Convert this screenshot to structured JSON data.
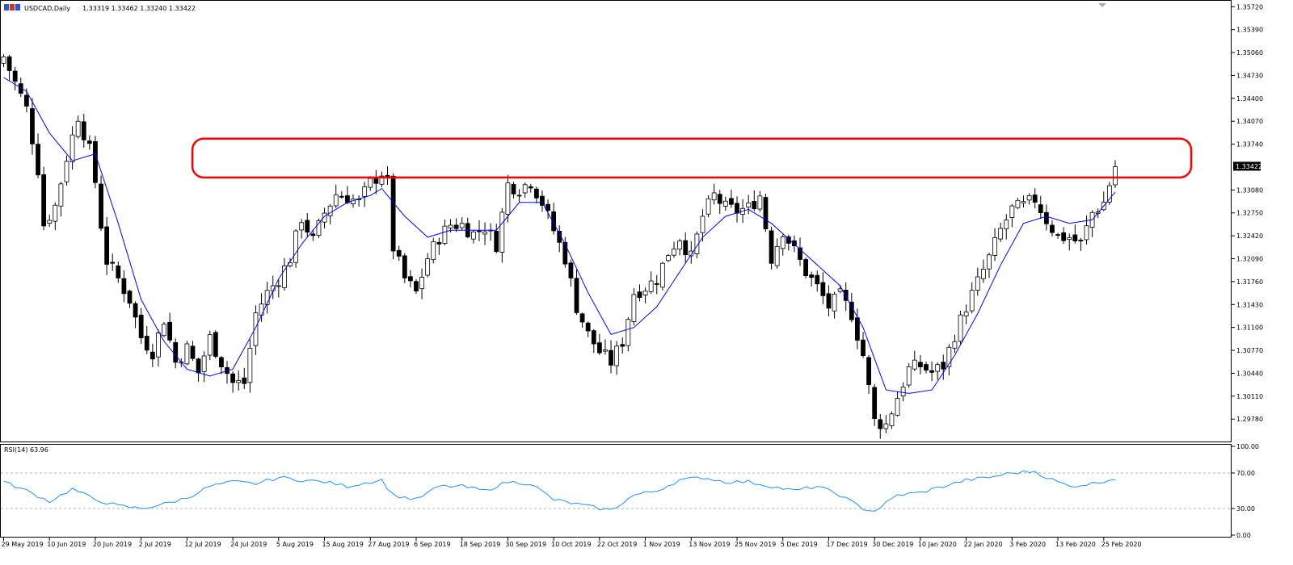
{
  "header": {
    "symbol_label": "USDCAD,Daily",
    "ohlc_label": "1.33319 1.33462 1.33240 1.33422"
  },
  "price_axis": {
    "ticks": [
      "1.35720",
      "1.35390",
      "1.35060",
      "1.34730",
      "1.34400",
      "1.34070",
      "1.33740",
      "1.33080",
      "1.32750",
      "1.32420",
      "1.32090",
      "1.31760",
      "1.31430",
      "1.31100",
      "1.30770",
      "1.30440",
      "1.30110",
      "1.29780"
    ],
    "tick_values": [
      1.3572,
      1.3539,
      1.3506,
      1.3473,
      1.344,
      1.3407,
      1.3374,
      1.3308,
      1.3275,
      1.3242,
      1.3209,
      1.3176,
      1.3143,
      1.311,
      1.3077,
      1.3044,
      1.3011,
      1.2978
    ],
    "current_price_label": "1.33422",
    "current_price": 1.33422,
    "range": [
      1.2948,
      1.3577
    ]
  },
  "rsi_panel": {
    "label": "RSI(14) 63.96",
    "ticks": [
      "100.00",
      "70.00",
      "30.00",
      "0.00"
    ],
    "tick_values": [
      100,
      70,
      30,
      0
    ],
    "levels": [
      70,
      30
    ],
    "range": [
      0,
      100
    ]
  },
  "time_axis": {
    "labels": [
      "29 May 2019",
      "10 Jun 2019",
      "20 Jun 2019",
      "2 Jul 2019",
      "12 Jul 2019",
      "24 Jul 2019",
      "5 Aug 2019",
      "15 Aug 2019",
      "27 Aug 2019",
      "6 Sep 2019",
      "18 Sep 2019",
      "30 Sep 2019",
      "10 Oct 2019",
      "22 Oct 2019",
      "1 Nov 2019",
      "13 Nov 2019",
      "25 Nov 2019",
      "5 Dec 2019",
      "17 Dec 2019",
      "30 Dec 2019",
      "10 Jan 2020",
      "22 Jan 2020",
      "3 Feb 2020",
      "13 Feb 2020",
      "25 Feb 2020"
    ],
    "label_bar_index": [
      0,
      8,
      16,
      24,
      32,
      40,
      48,
      56,
      64,
      72,
      80,
      88,
      96,
      104,
      112,
      120,
      128,
      136,
      144,
      152,
      160,
      168,
      176,
      184,
      192
    ]
  },
  "resistance_zone": {
    "top": 1.3382,
    "bottom": 1.3326,
    "color": "#ff0000"
  },
  "colors": {
    "bull_body": "#ffffff",
    "bear_body": "#000000",
    "ma_line": "#0000ff",
    "rsi_line": "#1e90ff",
    "zone": "#ff0000"
  },
  "chart_data": {
    "type": "candlestick",
    "symbol": "USDCAD",
    "timeframe": "Daily",
    "x_start": "29 May 2019",
    "x_end": "27 Feb 2020",
    "close_points": [
      [
        0,
        1.35
      ],
      [
        4,
        1.3425
      ],
      [
        6,
        1.3338
      ],
      [
        7,
        1.3258
      ],
      [
        9,
        1.3285
      ],
      [
        11,
        1.3355
      ],
      [
        13,
        1.3415
      ],
      [
        15,
        1.3365
      ],
      [
        16,
        1.332
      ],
      [
        17,
        1.3258
      ],
      [
        18,
        1.3206
      ],
      [
        20,
        1.318
      ],
      [
        22,
        1.315
      ],
      [
        24,
        1.3096
      ],
      [
        26,
        1.3075
      ],
      [
        28,
        1.3122
      ],
      [
        30,
        1.306
      ],
      [
        32,
        1.308
      ],
      [
        34,
        1.3045
      ],
      [
        36,
        1.3095
      ],
      [
        38,
        1.306
      ],
      [
        40,
        1.303
      ],
      [
        42,
        1.303
      ],
      [
        44,
        1.313
      ],
      [
        46,
        1.316
      ],
      [
        48,
        1.318
      ],
      [
        50,
        1.321
      ],
      [
        52,
        1.3268
      ],
      [
        54,
        1.3235
      ],
      [
        56,
        1.3275
      ],
      [
        58,
        1.3302
      ],
      [
        60,
        1.3298
      ],
      [
        62,
        1.329
      ],
      [
        64,
        1.3318
      ],
      [
        66,
        1.3333
      ],
      [
        67,
        1.3318
      ],
      [
        68,
        1.3225
      ],
      [
        70,
        1.318
      ],
      [
        72,
        1.316
      ],
      [
        74,
        1.321
      ],
      [
        76,
        1.324
      ],
      [
        78,
        1.3258
      ],
      [
        80,
        1.3258
      ],
      [
        82,
        1.3245
      ],
      [
        84,
        1.3255
      ],
      [
        86,
        1.323
      ],
      [
        88,
        1.3316
      ],
      [
        90,
        1.331
      ],
      [
        92,
        1.332
      ],
      [
        94,
        1.329
      ],
      [
        96,
        1.325
      ],
      [
        98,
        1.321
      ],
      [
        100,
        1.314
      ],
      [
        102,
        1.31
      ],
      [
        104,
        1.3075
      ],
      [
        106,
        1.306
      ],
      [
        108,
        1.309
      ],
      [
        110,
        1.316
      ],
      [
        112,
        1.3168
      ],
      [
        114,
        1.318
      ],
      [
        116,
        1.3218
      ],
      [
        118,
        1.324
      ],
      [
        120,
        1.321
      ],
      [
        122,
        1.327
      ],
      [
        124,
        1.33
      ],
      [
        126,
        1.3282
      ],
      [
        128,
        1.3278
      ],
      [
        130,
        1.3282
      ],
      [
        132,
        1.33
      ],
      [
        134,
        1.321
      ],
      [
        136,
        1.325
      ],
      [
        138,
        1.322
      ],
      [
        140,
        1.319
      ],
      [
        142,
        1.3168
      ],
      [
        144,
        1.314
      ],
      [
        146,
        1.3155
      ],
      [
        148,
        1.313
      ],
      [
        150,
        1.307
      ],
      [
        152,
        1.2975
      ],
      [
        154,
        1.297
      ],
      [
        156,
        1.301
      ],
      [
        158,
        1.305
      ],
      [
        160,
        1.3055
      ],
      [
        162,
        1.3045
      ],
      [
        164,
        1.3055
      ],
      [
        166,
        1.31
      ],
      [
        168,
        1.314
      ],
      [
        170,
        1.3175
      ],
      [
        172,
        1.321
      ],
      [
        174,
        1.325
      ],
      [
        176,
        1.328
      ],
      [
        178,
        1.3285
      ],
      [
        180,
        1.3295
      ],
      [
        182,
        1.3265
      ],
      [
        184,
        1.324
      ],
      [
        186,
        1.324
      ],
      [
        188,
        1.323
      ],
      [
        190,
        1.3275
      ],
      [
        192,
        1.329
      ],
      [
        194,
        1.3342
      ]
    ],
    "ma": {
      "name": "",
      "points": [
        [
          0,
          1.347
        ],
        [
          4,
          1.345
        ],
        [
          8,
          1.339
        ],
        [
          12,
          1.335
        ],
        [
          16,
          1.336
        ],
        [
          20,
          1.326
        ],
        [
          24,
          1.315
        ],
        [
          28,
          1.309
        ],
        [
          32,
          1.305
        ],
        [
          36,
          1.304
        ],
        [
          40,
          1.305
        ],
        [
          44,
          1.311
        ],
        [
          48,
          1.318
        ],
        [
          52,
          1.323
        ],
        [
          56,
          1.327
        ],
        [
          60,
          1.329
        ],
        [
          64,
          1.33
        ],
        [
          66,
          1.331
        ],
        [
          70,
          1.327
        ],
        [
          74,
          1.324
        ],
        [
          78,
          1.325
        ],
        [
          82,
          1.325
        ],
        [
          86,
          1.325
        ],
        [
          90,
          1.329
        ],
        [
          94,
          1.329
        ],
        [
          98,
          1.323
        ],
        [
          102,
          1.316
        ],
        [
          106,
          1.31
        ],
        [
          110,
          1.311
        ],
        [
          114,
          1.314
        ],
        [
          118,
          1.319
        ],
        [
          122,
          1.324
        ],
        [
          126,
          1.327
        ],
        [
          130,
          1.328
        ],
        [
          134,
          1.326
        ],
        [
          138,
          1.323
        ],
        [
          142,
          1.32
        ],
        [
          146,
          1.317
        ],
        [
          150,
          1.311
        ],
        [
          154,
          1.302
        ],
        [
          158,
          1.3015
        ],
        [
          162,
          1.302
        ],
        [
          166,
          1.307
        ],
        [
          170,
          1.313
        ],
        [
          174,
          1.32
        ],
        [
          178,
          1.326
        ],
        [
          182,
          1.327
        ],
        [
          186,
          1.326
        ],
        [
          190,
          1.3265
        ],
        [
          194,
          1.3305
        ]
      ]
    },
    "rsi": {
      "name": "",
      "points": [
        [
          0,
          60
        ],
        [
          4,
          50
        ],
        [
          8,
          38
        ],
        [
          12,
          52
        ],
        [
          16,
          40
        ],
        [
          20,
          33
        ],
        [
          24,
          30
        ],
        [
          28,
          35
        ],
        [
          32,
          42
        ],
        [
          36,
          55
        ],
        [
          40,
          60
        ],
        [
          44,
          58
        ],
        [
          48,
          65
        ],
        [
          52,
          62
        ],
        [
          56,
          60
        ],
        [
          60,
          55
        ],
        [
          64,
          60
        ],
        [
          66,
          62
        ],
        [
          68,
          45
        ],
        [
          72,
          40
        ],
        [
          76,
          55
        ],
        [
          80,
          55
        ],
        [
          84,
          50
        ],
        [
          88,
          60
        ],
        [
          92,
          58
        ],
        [
          96,
          40
        ],
        [
          100,
          35
        ],
        [
          104,
          30
        ],
        [
          106,
          28
        ],
        [
          110,
          45
        ],
        [
          114,
          50
        ],
        [
          118,
          62
        ],
        [
          122,
          65
        ],
        [
          126,
          60
        ],
        [
          130,
          60
        ],
        [
          134,
          55
        ],
        [
          138,
          50
        ],
        [
          142,
          55
        ],
        [
          146,
          45
        ],
        [
          150,
          30
        ],
        [
          152,
          27
        ],
        [
          156,
          45
        ],
        [
          160,
          48
        ],
        [
          164,
          55
        ],
        [
          168,
          62
        ],
        [
          172,
          65
        ],
        [
          176,
          70
        ],
        [
          180,
          72
        ],
        [
          182,
          65
        ],
        [
          186,
          55
        ],
        [
          190,
          58
        ],
        [
          194,
          63.96
        ]
      ]
    }
  }
}
